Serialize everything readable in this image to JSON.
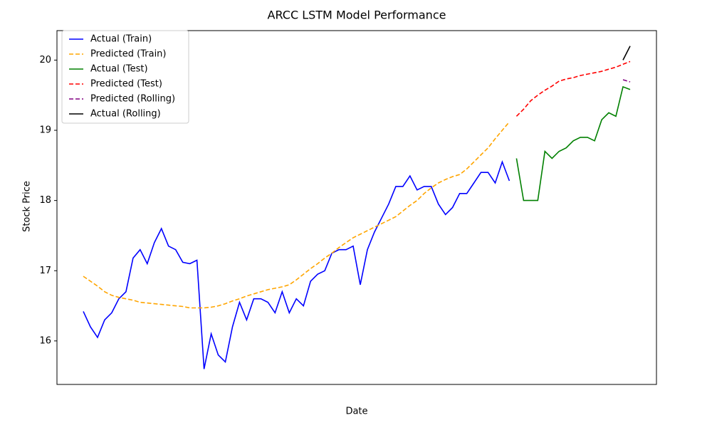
{
  "chart_data": {
    "type": "line",
    "title": "ARCC LSTM Model Performance",
    "x_label": "Date",
    "y_label": "Stock Price",
    "ylim": [
      15.38,
      20.42
    ],
    "yticks": [
      16,
      17,
      18,
      19,
      20
    ],
    "grid": false,
    "legend": "upper left",
    "series": [
      {
        "name": "Actual (Train)",
        "color": "#0000ff",
        "dashed": false,
        "values": [
          16.42,
          16.2,
          16.05,
          16.3,
          16.4,
          16.6,
          16.7,
          17.18,
          17.3,
          17.1,
          17.4,
          17.6,
          17.35,
          17.3,
          17.12,
          17.1,
          17.15,
          15.6,
          16.1,
          15.8,
          15.7,
          16.2,
          16.55,
          16.3,
          16.6,
          16.6,
          16.55,
          16.4,
          16.7,
          16.4,
          16.6,
          16.5,
          16.85,
          16.95,
          17.0,
          17.25,
          17.3,
          17.3,
          17.35,
          16.8,
          17.3,
          17.55,
          17.75,
          17.95,
          18.2,
          18.2,
          18.35,
          18.15,
          18.2,
          18.2,
          17.95,
          17.8,
          17.9,
          18.1,
          18.1,
          18.25,
          18.4,
          18.4,
          18.25,
          18.55,
          18.28,
          null,
          null,
          null,
          null,
          null,
          null,
          null,
          null,
          null,
          null,
          null,
          null,
          null,
          null,
          null,
          null,
          null
        ]
      },
      {
        "name": "Predicted (Train)",
        "color": "#ffa500",
        "dashed": true,
        "values": [
          16.92,
          16.85,
          16.78,
          16.7,
          16.65,
          16.62,
          16.6,
          16.58,
          16.55,
          16.54,
          16.53,
          16.52,
          16.51,
          16.5,
          16.49,
          16.47,
          16.47,
          16.47,
          16.48,
          16.5,
          16.53,
          16.57,
          16.6,
          16.64,
          16.67,
          16.7,
          16.73,
          16.75,
          16.77,
          16.8,
          16.87,
          16.95,
          17.03,
          17.1,
          17.18,
          17.25,
          17.33,
          17.4,
          17.47,
          17.52,
          17.57,
          17.62,
          17.67,
          17.72,
          17.77,
          17.85,
          17.93,
          18.0,
          18.1,
          18.18,
          18.25,
          18.3,
          18.34,
          18.37,
          18.45,
          18.55,
          18.65,
          18.75,
          18.88,
          19.0,
          19.12,
          null,
          null,
          null,
          null,
          null,
          null,
          null,
          null,
          null,
          null,
          null,
          null,
          null,
          null,
          null,
          null,
          null
        ]
      },
      {
        "name": "Actual (Test)",
        "color": "#008000",
        "dashed": false,
        "values": [
          null,
          null,
          null,
          null,
          null,
          null,
          null,
          null,
          null,
          null,
          null,
          null,
          null,
          null,
          null,
          null,
          null,
          null,
          null,
          null,
          null,
          null,
          null,
          null,
          null,
          null,
          null,
          null,
          null,
          null,
          null,
          null,
          null,
          null,
          null,
          null,
          null,
          null,
          null,
          null,
          null,
          null,
          null,
          null,
          null,
          null,
          null,
          null,
          null,
          null,
          null,
          null,
          null,
          null,
          null,
          null,
          null,
          null,
          null,
          null,
          null,
          18.6,
          18.0,
          18.0,
          18.0,
          18.7,
          18.6,
          18.7,
          18.75,
          18.85,
          18.9,
          18.9,
          18.85,
          19.15,
          19.25,
          19.2,
          19.62,
          19.58
        ]
      },
      {
        "name": "Predicted (Test)",
        "color": "#ff0000",
        "dashed": true,
        "values": [
          null,
          null,
          null,
          null,
          null,
          null,
          null,
          null,
          null,
          null,
          null,
          null,
          null,
          null,
          null,
          null,
          null,
          null,
          null,
          null,
          null,
          null,
          null,
          null,
          null,
          null,
          null,
          null,
          null,
          null,
          null,
          null,
          null,
          null,
          null,
          null,
          null,
          null,
          null,
          null,
          null,
          null,
          null,
          null,
          null,
          null,
          null,
          null,
          null,
          null,
          null,
          null,
          null,
          null,
          null,
          null,
          null,
          null,
          null,
          null,
          null,
          19.2,
          19.3,
          19.42,
          19.5,
          19.57,
          19.63,
          19.7,
          19.73,
          19.75,
          19.78,
          19.8,
          19.82,
          19.84,
          19.87,
          19.9,
          19.94,
          19.98
        ]
      },
      {
        "name": "Predicted (Rolling)",
        "color": "#800080",
        "dashed": true,
        "values": [
          null,
          null,
          null,
          null,
          null,
          null,
          null,
          null,
          null,
          null,
          null,
          null,
          null,
          null,
          null,
          null,
          null,
          null,
          null,
          null,
          null,
          null,
          null,
          null,
          null,
          null,
          null,
          null,
          null,
          null,
          null,
          null,
          null,
          null,
          null,
          null,
          null,
          null,
          null,
          null,
          null,
          null,
          null,
          null,
          null,
          null,
          null,
          null,
          null,
          null,
          null,
          null,
          null,
          null,
          null,
          null,
          null,
          null,
          null,
          null,
          null,
          null,
          null,
          null,
          null,
          null,
          null,
          null,
          null,
          null,
          null,
          null,
          null,
          null,
          null,
          null,
          19.72,
          19.69
        ]
      },
      {
        "name": "Actual (Rolling)",
        "color": "#000000",
        "dashed": false,
        "values": [
          null,
          null,
          null,
          null,
          null,
          null,
          null,
          null,
          null,
          null,
          null,
          null,
          null,
          null,
          null,
          null,
          null,
          null,
          null,
          null,
          null,
          null,
          null,
          null,
          null,
          null,
          null,
          null,
          null,
          null,
          null,
          null,
          null,
          null,
          null,
          null,
          null,
          null,
          null,
          null,
          null,
          null,
          null,
          null,
          null,
          null,
          null,
          null,
          null,
          null,
          null,
          null,
          null,
          null,
          null,
          null,
          null,
          null,
          null,
          null,
          null,
          null,
          null,
          null,
          null,
          null,
          null,
          null,
          null,
          null,
          null,
          null,
          null,
          null,
          null,
          null,
          20.0,
          20.2
        ]
      }
    ]
  }
}
